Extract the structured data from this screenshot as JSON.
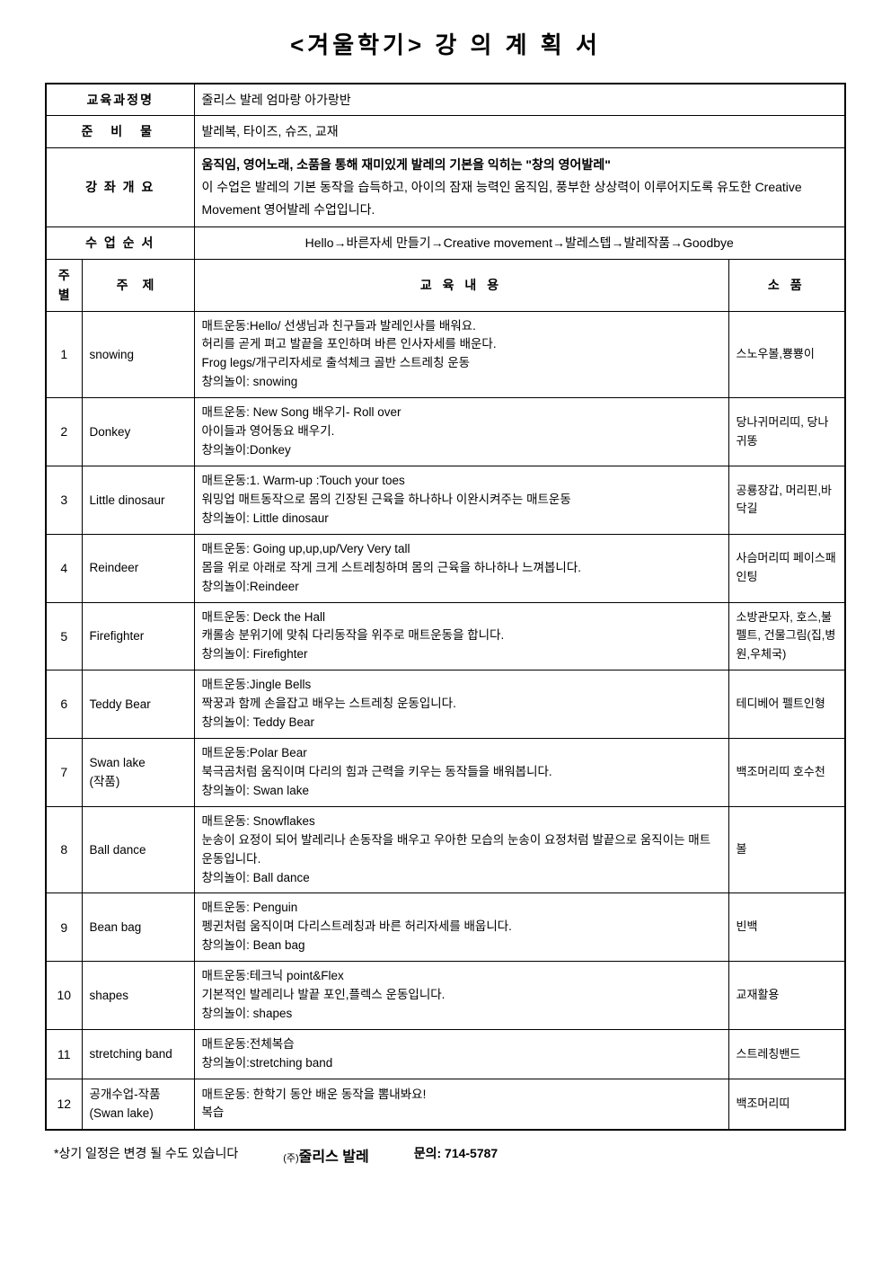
{
  "title": "<겨울학기> 강 의 계 획 서",
  "info": {
    "course_label": "교육과정명",
    "course_value": "줄리스 발레 엄마랑 아가랑반",
    "materials_label": "준 비 물",
    "materials_value": "발레복, 타이즈, 슈즈, 교재",
    "overview_label": "강 좌 개 요",
    "overview_line1": "움직임, 영어노래, 소품을 통해 재미있게 발레의 기본을 익히는 \"창의 영어발레\"",
    "overview_line2": "이 수업은 발레의 기본 동작을 습득하고, 아이의 잠재 능력인 움직임, 풍부한 상상력이 이루어지도록 유도한 Creative Movement 영어발레 수업입니다.",
    "order_label": "수 업 순 서",
    "order_value": "Hello→바른자세 만들기→Creative movement→발레스텝→발레작품→Goodbye"
  },
  "headers": {
    "week": "주별",
    "subject": "주  제",
    "content": "교 육 내 용",
    "props": "소 품"
  },
  "rows": [
    {
      "num": "1",
      "subject": "snowing",
      "content": "매트운동:Hello/ 선생님과 친구들과 발레인사를 배워요.\n허리를 곧게 펴고 발끝을 포인하며 바른 인사자세를 배운다.\nFrog legs/개구리자세로 출석체크 골반 스트레칭 운동\n창의놀이: snowing",
      "props": "스노우볼,뿅뿅이"
    },
    {
      "num": "2",
      "subject": "Donkey",
      "content": "매트운동: New Song 배우기- Roll over\n            아이들과 영어동요 배우기.\n창의놀이:Donkey",
      "props": "당나귀머리띠, 당나귀똥"
    },
    {
      "num": "3",
      "subject": "Little dinosaur",
      "content": "매트운동:1. Warm-up :Touch your toes\n워밍업 매트동작으로 몸의 긴장된 근육을 하나하나 이완시켜주는  매트운동\n창의놀이: Little dinosaur",
      "props": "공룡장갑, 머리핀,바닥길"
    },
    {
      "num": "4",
      "subject": "Reindeer",
      "content": "매트운동: Going up,up,up/Very Very tall\n몸을 위로 아래로 작게 크게 스트레칭하며 몸의 근육을 하나하나 느껴봅니다.\n창의놀이:Reindeer",
      "props": "사슴머리띠 페이스패인팅"
    },
    {
      "num": "5",
      "subject": "Firefighter",
      "content": "매트운동: Deck the Hall\n캐롤송 분위기에 맞춰 다리동작을 위주로 매트운동을 합니다.\n창의놀이: Firefighter",
      "props": "소방관모자, 호스,불펠트, 건물그림(집,병원,우체국)"
    },
    {
      "num": "6",
      "subject": "Teddy Bear",
      "content": "매트운동:Jingle Bells\n짝꿍과 함께 손을잡고 배우는 스트레칭 운동입니다.\n창의놀이: Teddy Bear",
      "props": "테디베어 펠트인형"
    },
    {
      "num": "7",
      "subject": "Swan lake\n(작품)",
      "content": "매트운동:Polar Bear\n북극곰처럼 움직이며 다리의 힘과 근력을 키우는 동작들을 배워봅니다.\n창의놀이: Swan lake",
      "props": "백조머리띠 호수천"
    },
    {
      "num": "8",
      "subject": "Ball dance",
      "content": "매트운동: Snowflakes\n눈송이 요정이 되어 발레리나 손동작을 배우고 우아한 모습의 눈송이 요정처럼 발끝으로 움직이는 매트운동입니다.\n창의놀이: Ball dance",
      "props": "볼"
    },
    {
      "num": "9",
      "subject": "Bean bag",
      "content": "매트운동: Penguin\n펭귄처럼 움직이며 다리스트레칭과 바른 허리자세를 배웁니다.\n창의놀이: Bean bag",
      "props": "빈백"
    },
    {
      "num": "10",
      "subject": "shapes",
      "content": "매트운동:테크닉 point&Flex\n기본적인 발레리나 발끝 포인,플렉스 운동입니다.\n창의놀이: shapes",
      "props": "교재활용"
    },
    {
      "num": "11",
      "subject": "stretching band",
      "content": "매트운동:전체복습\n창의놀이:stretching band",
      "props": "스트레칭밴드"
    },
    {
      "num": "12",
      "subject": "공개수업-작품\n(Swan lake)",
      "content": "매트운동: 한학기 동안 배운 동작을 뽐내봐요!\n복습",
      "props": "백조머리띠"
    }
  ],
  "footer": {
    "note": "*상기 일정은 변경 될 수도 있습니다",
    "company_prefix": "(주)",
    "company": "줄리스 발레",
    "contact": "문의: 714-5787"
  }
}
